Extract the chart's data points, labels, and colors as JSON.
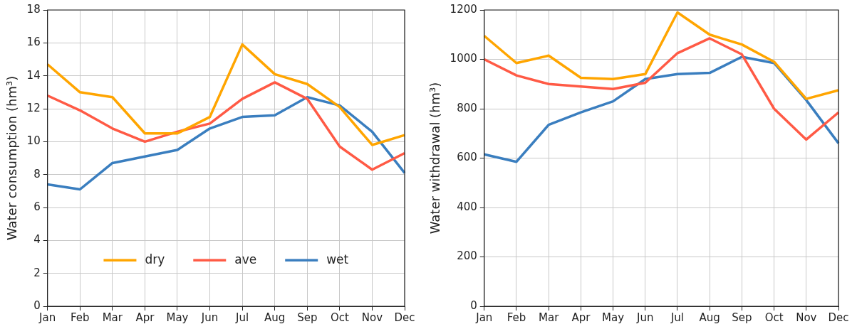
{
  "chart_data": [
    {
      "type": "line",
      "ylabel": "Water consumption (hm³)",
      "categories": [
        "Jan",
        "Feb",
        "Mar",
        "Apr",
        "May",
        "Jun",
        "Jul",
        "Aug",
        "Sep",
        "Oct",
        "Nov",
        "Dec"
      ],
      "ylim": [
        0,
        18
      ],
      "yticks": [
        0,
        2,
        4,
        6,
        8,
        10,
        12,
        14,
        16,
        18
      ],
      "grid": true,
      "legend": "bottom",
      "marker": "none",
      "line_style": "solid",
      "series": [
        {
          "name": "dry",
          "color": "#ffa500",
          "values": [
            14.7,
            13.0,
            12.7,
            10.5,
            10.5,
            11.5,
            15.9,
            14.1,
            13.5,
            12.1,
            9.8,
            10.4
          ]
        },
        {
          "name": "ave",
          "color": "#ff5a45",
          "values": [
            12.8,
            11.9,
            10.8,
            10.0,
            10.6,
            11.1,
            12.6,
            13.6,
            12.6,
            9.7,
            8.3,
            9.3
          ]
        },
        {
          "name": "wet",
          "color": "#3a7ebf",
          "values": [
            7.4,
            7.1,
            8.7,
            9.1,
            9.5,
            10.8,
            11.5,
            11.6,
            12.7,
            12.2,
            10.6,
            8.1
          ]
        }
      ]
    },
    {
      "type": "line",
      "ylabel": "Water withdrawal (hm³)",
      "categories": [
        "Jan",
        "Feb",
        "Mar",
        "Apr",
        "May",
        "Jun",
        "Jul",
        "Aug",
        "Sep",
        "Oct",
        "Nov",
        "Dec"
      ],
      "ylim": [
        0,
        1200
      ],
      "yticks": [
        0,
        200,
        400,
        600,
        800,
        1000,
        1200
      ],
      "grid": true,
      "marker": "none",
      "line_style": "solid",
      "series": [
        {
          "color": "#ffa500",
          "values": [
            1095,
            985,
            1015,
            925,
            920,
            940,
            1190,
            1100,
            1060,
            990,
            840,
            875
          ]
        },
        {
          "color": "#ff5a45",
          "values": [
            1000,
            935,
            900,
            890,
            880,
            905,
            1025,
            1085,
            1020,
            800,
            675,
            785
          ]
        },
        {
          "color": "#3a7ebf",
          "values": [
            615,
            585,
            735,
            785,
            830,
            920,
            940,
            945,
            1010,
            985,
            835,
            660
          ]
        }
      ]
    }
  ]
}
